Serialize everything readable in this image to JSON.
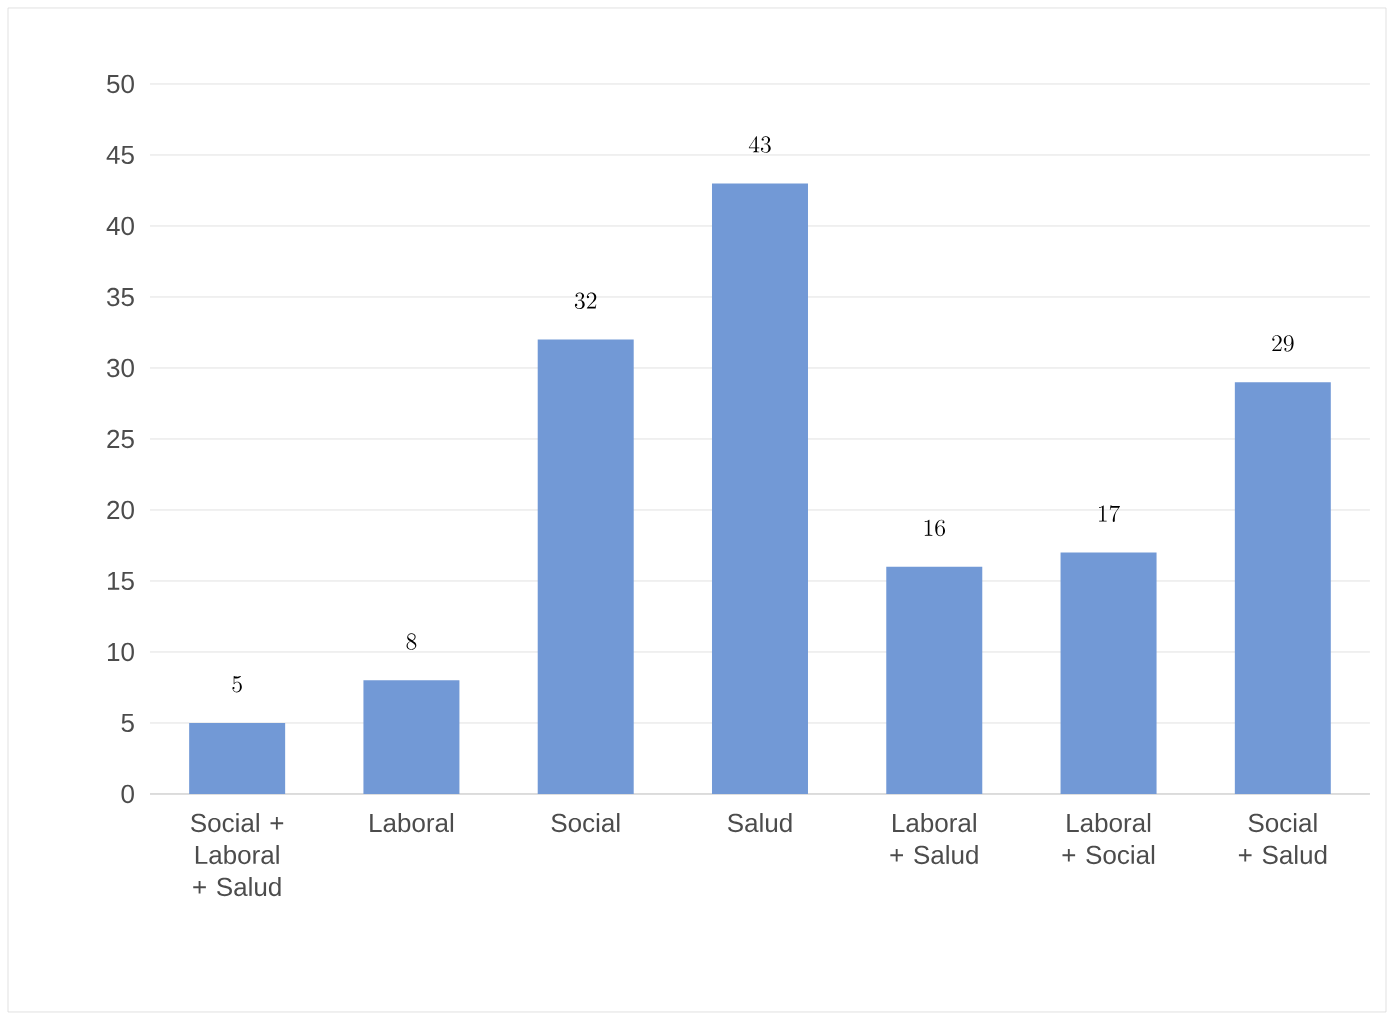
{
  "chart_data": {
    "type": "bar",
    "categories": [
      "Social + Laboral + Salud",
      "Laboral",
      "Social",
      "Salud",
      "Laboral + Salud",
      "Laboral + Social",
      "Social + Salud"
    ],
    "values": [
      5,
      8,
      32,
      43,
      16,
      17,
      29
    ],
    "color": "#7299d6",
    "ylim": [
      0,
      50
    ],
    "yticks": [
      0,
      5,
      10,
      15,
      20,
      25,
      30,
      35,
      40,
      45,
      50
    ],
    "grid": "y",
    "data_labels": true
  }
}
